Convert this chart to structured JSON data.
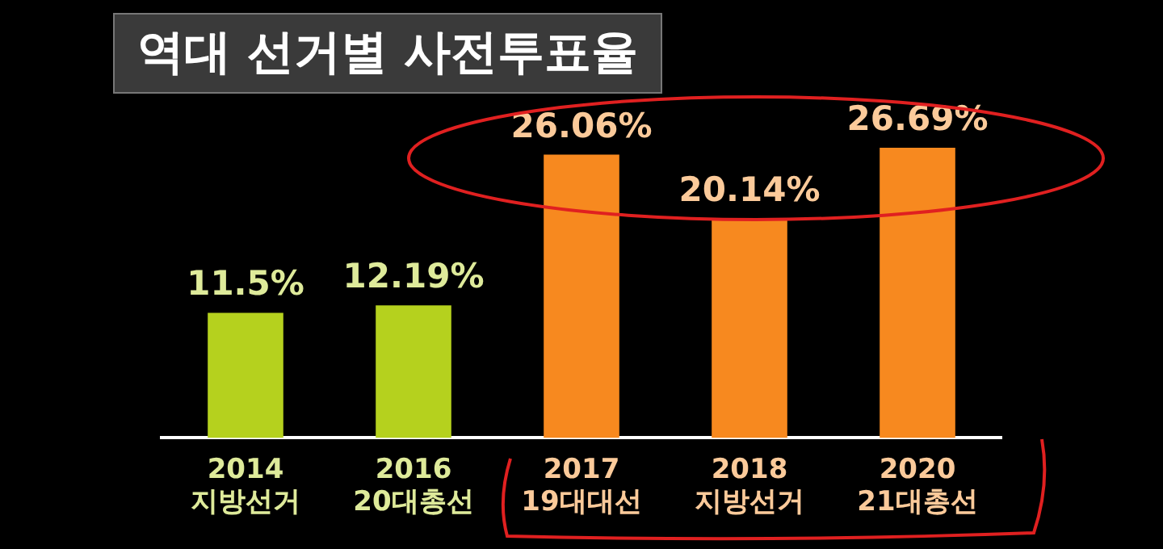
{
  "chart_data": {
    "type": "bar",
    "title": "역대 선거별 사전투표율",
    "categories": [
      "2014 지방선거",
      "2016 20대총선",
      "2017 19대대선",
      "2018 지방선거",
      "2020 21대총선"
    ],
    "values": [
      11.5,
      12.19,
      26.06,
      20.14,
      26.69
    ],
    "value_labels": [
      "11.5%",
      "12.19%",
      "26.06%",
      "20.14%",
      "26.69%"
    ],
    "colors": [
      "#b5d11e",
      "#b5d11e",
      "#f7891f",
      "#f7891f",
      "#f7891f"
    ]
  }
}
